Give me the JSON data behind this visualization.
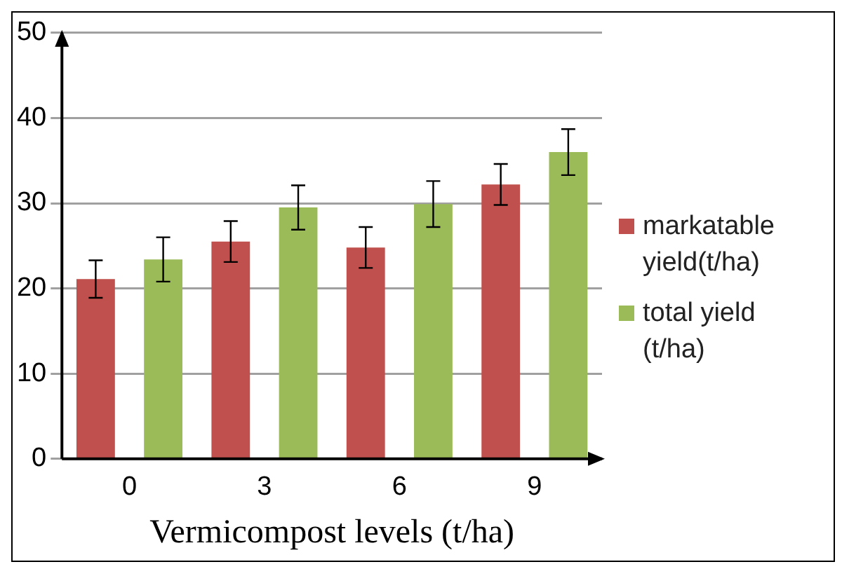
{
  "chart_data": {
    "type": "bar",
    "xlabel": "Vermicompost levels (t/ha)",
    "categories": [
      "0",
      "3",
      "6",
      "9"
    ],
    "series": [
      {
        "name": "markatable yield(t/ha)",
        "color": "#c0504d",
        "values": [
          21.1,
          25.5,
          24.8,
          32.2
        ],
        "errors": [
          2.2,
          2.4,
          2.4,
          2.4
        ]
      },
      {
        "name": "total yield (t/ha)",
        "color": "#9bbb59",
        "values": [
          23.4,
          29.5,
          29.9,
          36.0
        ],
        "errors": [
          2.6,
          2.6,
          2.7,
          2.7
        ]
      }
    ],
    "ylim": [
      0,
      50
    ],
    "yticks": [
      0,
      10,
      20,
      30,
      40,
      50
    ],
    "grid": "y",
    "legend": "right"
  }
}
